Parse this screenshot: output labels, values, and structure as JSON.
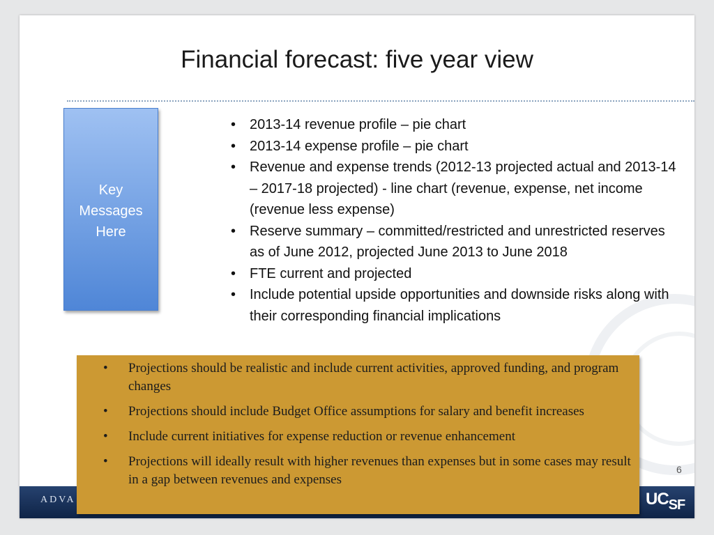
{
  "slide": {
    "title": "Financial forecast:  five year view",
    "page_number": "6"
  },
  "key_box": {
    "lines": [
      "Key",
      "Messages",
      "Here"
    ]
  },
  "top_bullets": [
    "2013-14 revenue profile – pie chart",
    "2013-14 expense profile – pie chart",
    "Revenue and expense trends (2012-13 projected actual and 2013-14 – 2017-18 projected) - line chart  (revenue, expense, net income (revenue less expense)",
    "Reserve summary – committed/restricted and unrestricted reserves as of June 2012, projected June 2013 to June 2018",
    "FTE current and projected",
    "Include potential upside opportunities and downside risks along with their corresponding financial implications"
  ],
  "gold_bullets": [
    "Projections should be realistic and include current activities, approved funding, and program changes",
    "Projections should include Budget Office assumptions for salary and benefit increases",
    "Include current initiatives for expense reduction or revenue enhancement",
    "Projections will ideally result with higher revenues than expenses but in some cases may result in a gap between revenues and expenses"
  ],
  "bullet_symbol": "•",
  "footer": {
    "text": "ADVA",
    "logo_main": "UC",
    "logo_sub": "SF"
  },
  "colors": {
    "key_box_top": "#9fc1f2",
    "key_box_bottom": "#4f86d7",
    "gold_box": "#cc9933",
    "footer_bar": "#1a3360"
  }
}
